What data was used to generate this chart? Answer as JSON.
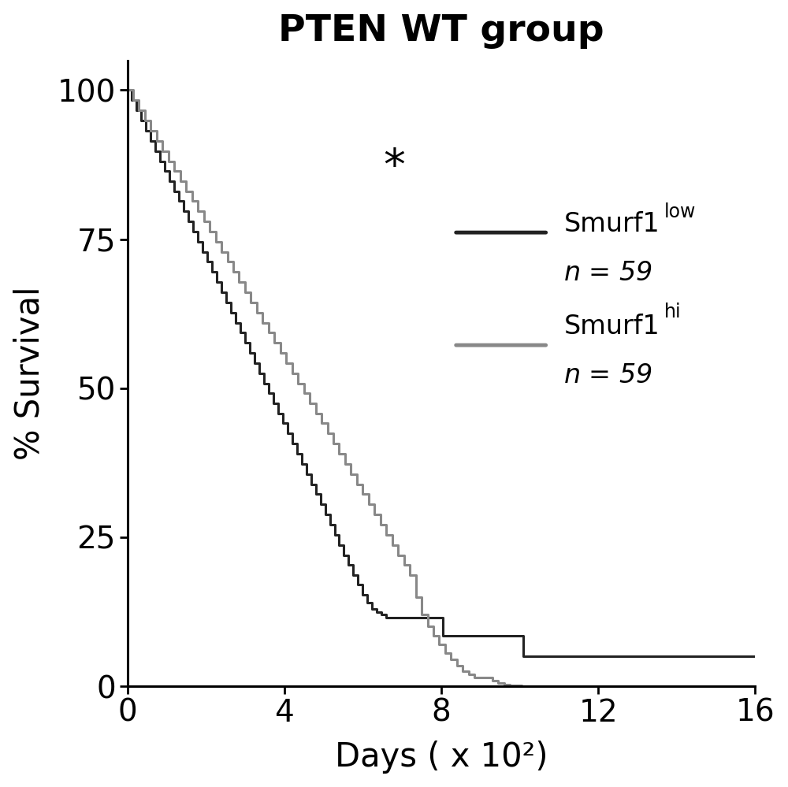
{
  "title": "PTEN WT group",
  "xlabel": "Days ( x 10²)",
  "ylabel": "% Survival",
  "xlim": [
    0,
    16
  ],
  "ylim": [
    0,
    105
  ],
  "xticks": [
    0,
    4,
    8,
    12,
    16
  ],
  "yticks": [
    0,
    25,
    50,
    75,
    100
  ],
  "title_fontsize": 34,
  "label_fontsize": 30,
  "tick_fontsize": 28,
  "annotation_star": "*",
  "star_x": 6.8,
  "star_y": 87,
  "background_color": "#ffffff",
  "low_color": "#222222",
  "hi_color": "#888888",
  "low_lw": 2.2,
  "hi_lw": 2.2,
  "legend_line_low_color": "#222222",
  "legend_line_hi_color": "#888888",
  "low_times": [
    0.0,
    0.12,
    0.24,
    0.36,
    0.48,
    0.6,
    0.72,
    0.84,
    0.96,
    1.08,
    1.2,
    1.32,
    1.44,
    1.56,
    1.68,
    1.8,
    1.92,
    2.04,
    2.16,
    2.28,
    2.4,
    2.52,
    2.64,
    2.76,
    2.88,
    3.0,
    3.12,
    3.24,
    3.36,
    3.48,
    3.6,
    3.72,
    3.84,
    3.96,
    4.08,
    4.2,
    4.32,
    4.44,
    4.56,
    4.68,
    4.8,
    4.92,
    5.04,
    5.16,
    5.28,
    5.4,
    5.52,
    5.64,
    5.76,
    5.88,
    6.0,
    6.12,
    6.24,
    6.36,
    6.48,
    6.6,
    6.72,
    6.84,
    6.96,
    7.08,
    7.2,
    7.32,
    7.44,
    7.56,
    7.68,
    7.8,
    7.92,
    8.04,
    8.16,
    8.28,
    8.4,
    8.52,
    8.64,
    8.76,
    8.88,
    9.0,
    9.12,
    9.24,
    9.36,
    9.48,
    9.6,
    9.72,
    9.84,
    9.96,
    10.08,
    10.2,
    10.32,
    10.44,
    10.56,
    10.68,
    10.8,
    10.92,
    11.04,
    11.16,
    11.28,
    11.4,
    11.52,
    11.64,
    11.76,
    11.88,
    12.0,
    12.6,
    13.2,
    13.8,
    14.4,
    15.0,
    15.6,
    15.98
  ],
  "low_surv": [
    100,
    98.3,
    96.6,
    94.9,
    93.2,
    91.5,
    89.8,
    88.1,
    86.4,
    84.7,
    83.0,
    81.4,
    79.7,
    78.0,
    76.3,
    74.6,
    72.9,
    71.2,
    69.5,
    67.8,
    66.1,
    64.4,
    62.7,
    61.0,
    59.3,
    57.6,
    55.9,
    54.2,
    52.5,
    50.8,
    49.2,
    47.5,
    45.8,
    44.1,
    42.4,
    40.7,
    39.0,
    37.3,
    35.6,
    33.9,
    32.2,
    30.5,
    28.8,
    27.1,
    25.4,
    23.7,
    22.0,
    20.3,
    18.6,
    17.0,
    15.3,
    14.0,
    13.0,
    12.5,
    12.0,
    11.5,
    11.5,
    11.5,
    11.5,
    11.5,
    11.5,
    11.5,
    11.5,
    11.5,
    11.5,
    11.5,
    11.5,
    8.5,
    8.5,
    8.5,
    8.5,
    8.5,
    8.5,
    8.5,
    8.5,
    8.5,
    8.5,
    8.5,
    8.5,
    8.5,
    8.5,
    8.5,
    8.5,
    8.5,
    5.0,
    5.0,
    5.0,
    5.0,
    5.0,
    5.0,
    5.0,
    5.0,
    5.0,
    5.0,
    5.0,
    5.0,
    5.0,
    5.0,
    5.0,
    5.0,
    5.0,
    5.0,
    5.0,
    5.0,
    5.0,
    5.0,
    5.0,
    5.0
  ],
  "hi_times": [
    0.0,
    0.15,
    0.3,
    0.45,
    0.6,
    0.75,
    0.9,
    1.05,
    1.2,
    1.35,
    1.5,
    1.65,
    1.8,
    1.95,
    2.1,
    2.25,
    2.4,
    2.55,
    2.7,
    2.85,
    3.0,
    3.15,
    3.3,
    3.45,
    3.6,
    3.75,
    3.9,
    4.05,
    4.2,
    4.35,
    4.5,
    4.65,
    4.8,
    4.95,
    5.1,
    5.25,
    5.4,
    5.55,
    5.7,
    5.85,
    6.0,
    6.15,
    6.3,
    6.45,
    6.6,
    6.75,
    6.9,
    7.05,
    7.2,
    7.35,
    7.5,
    7.65,
    7.8,
    7.95,
    8.1,
    8.25,
    8.4,
    8.55,
    8.7,
    8.85,
    9.0,
    9.15,
    9.3,
    9.45,
    9.6,
    9.75,
    9.9,
    10.05,
    10.2,
    10.5,
    10.8,
    11.0
  ],
  "hi_surv": [
    100,
    98.3,
    96.6,
    94.9,
    93.2,
    91.5,
    89.8,
    88.1,
    86.4,
    84.7,
    83.0,
    81.4,
    79.7,
    78.0,
    76.3,
    74.6,
    72.9,
    71.2,
    69.5,
    67.8,
    66.1,
    64.4,
    62.7,
    61.0,
    59.3,
    57.6,
    55.9,
    54.2,
    52.5,
    50.8,
    49.2,
    47.5,
    45.8,
    44.1,
    42.4,
    40.7,
    39.0,
    37.3,
    35.6,
    33.9,
    32.2,
    30.5,
    28.8,
    27.1,
    25.4,
    23.7,
    22.0,
    20.3,
    18.6,
    15.0,
    12.0,
    10.0,
    8.5,
    7.0,
    5.5,
    4.5,
    3.5,
    2.5,
    2.0,
    1.5,
    1.5,
    1.5,
    1.0,
    0.5,
    0.3,
    0.2,
    0.1,
    0.05,
    0.02,
    0.01,
    0.005,
    0.001
  ]
}
